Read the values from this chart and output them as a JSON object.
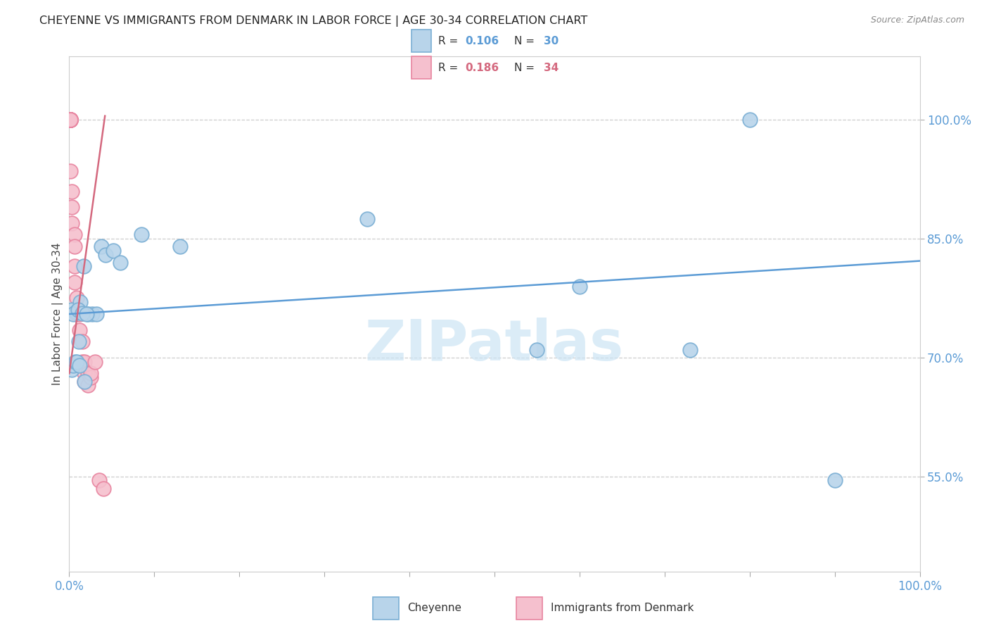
{
  "title": "CHEYENNE VS IMMIGRANTS FROM DENMARK IN LABOR FORCE | AGE 30-34 CORRELATION CHART",
  "source": "Source: ZipAtlas.com",
  "ylabel": "In Labor Force | Age 30-34",
  "legend_blue_R": "0.106",
  "legend_blue_N": "30",
  "legend_pink_R": "0.186",
  "legend_pink_N": "34",
  "blue_color": "#b8d4ea",
  "blue_edge": "#7bafd4",
  "pink_color": "#f5c0ce",
  "pink_edge": "#e885a0",
  "blue_line_color": "#5b9bd5",
  "pink_line_color": "#d4687e",
  "watermark_color": "#cde5f5",
  "cheyenne_x": [
    0.003,
    0.008,
    0.013,
    0.017,
    0.022,
    0.027,
    0.032,
    0.038,
    0.043,
    0.052,
    0.005,
    0.01,
    0.015,
    0.02,
    0.06,
    0.003,
    0.005,
    0.007,
    0.009,
    0.011,
    0.085,
    0.13,
    0.35,
    0.6,
    0.8,
    0.55,
    0.73,
    0.9,
    0.012,
    0.018
  ],
  "cheyenne_y": [
    0.76,
    0.758,
    0.77,
    0.815,
    0.755,
    0.755,
    0.755,
    0.84,
    0.83,
    0.835,
    0.755,
    0.76,
    0.756,
    0.755,
    0.82,
    0.685,
    0.69,
    0.695,
    0.695,
    0.72,
    0.855,
    0.84,
    0.875,
    0.79,
    1.0,
    0.71,
    0.71,
    0.545,
    0.69,
    0.67
  ],
  "denmark_x": [
    0.001,
    0.001,
    0.001,
    0.001,
    0.001,
    0.001,
    0.001,
    0.001,
    0.001,
    0.001,
    0.001,
    0.003,
    0.003,
    0.003,
    0.006,
    0.006,
    0.006,
    0.006,
    0.009,
    0.009,
    0.012,
    0.012,
    0.015,
    0.015,
    0.018,
    0.018,
    0.018,
    0.022,
    0.022,
    0.025,
    0.025,
    0.03,
    0.035,
    0.04
  ],
  "denmark_y": [
    1.0,
    1.0,
    1.0,
    1.0,
    1.0,
    1.0,
    1.0,
    1.0,
    1.0,
    1.0,
    0.935,
    0.91,
    0.89,
    0.87,
    0.855,
    0.84,
    0.815,
    0.795,
    0.775,
    0.755,
    0.755,
    0.735,
    0.72,
    0.695,
    0.68,
    0.695,
    0.67,
    0.68,
    0.665,
    0.675,
    0.68,
    0.695,
    0.545,
    0.535
  ],
  "blue_trendline_x": [
    0.0,
    1.0
  ],
  "blue_trendline_y": [
    0.755,
    0.822
  ],
  "pink_trendline_x": [
    0.0,
    0.042
  ],
  "pink_trendline_y": [
    0.68,
    1.005
  ],
  "xmin": 0.0,
  "xmax": 1.0,
  "ymin": 0.43,
  "ymax": 1.08,
  "yticks": [
    0.55,
    0.7,
    0.85,
    1.0
  ],
  "ytick_labels": [
    "55.0%",
    "70.0%",
    "85.0%",
    "100.0%"
  ]
}
